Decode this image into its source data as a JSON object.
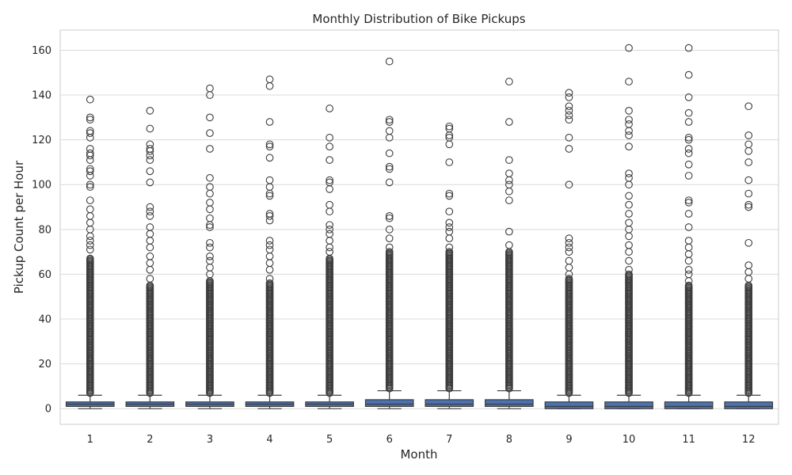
{
  "chart_data": {
    "type": "box",
    "title": "Monthly Distribution of Bike Pickups",
    "xlabel": "Month",
    "ylabel": "Pickup Count per Hour",
    "categories": [
      "1",
      "2",
      "3",
      "4",
      "5",
      "6",
      "7",
      "8",
      "9",
      "10",
      "11",
      "12"
    ],
    "ylim": [
      -7,
      169
    ],
    "yticks": [
      0,
      20,
      40,
      60,
      80,
      100,
      120,
      140,
      160
    ],
    "grid": true,
    "box_color": "#4c72b0",
    "series": [
      {
        "month": "1",
        "q1": 1,
        "median": 2,
        "q3": 3,
        "whisker_low": 0,
        "whisker_high": 6,
        "dense_outliers_to": 67,
        "outliers": [
          71,
          73,
          75,
          77,
          80,
          83,
          86,
          89,
          93,
          99,
          100,
          104,
          106,
          107,
          111,
          113,
          114,
          116,
          121,
          123,
          124,
          129,
          130,
          138
        ]
      },
      {
        "month": "2",
        "q1": 1,
        "median": 2,
        "q3": 3,
        "whisker_low": 0,
        "whisker_high": 6,
        "dense_outliers_to": 55,
        "outliers": [
          58,
          62,
          65,
          68,
          72,
          75,
          78,
          81,
          86,
          88,
          90,
          101,
          106,
          111,
          113,
          115,
          116,
          118,
          125,
          133
        ]
      },
      {
        "month": "3",
        "q1": 1,
        "median": 2,
        "q3": 3,
        "whisker_low": 0,
        "whisker_high": 6,
        "dense_outliers_to": 57,
        "outliers": [
          60,
          63,
          66,
          68,
          72,
          74,
          81,
          82,
          85,
          89,
          92,
          96,
          99,
          103,
          116,
          123,
          130,
          140,
          143
        ]
      },
      {
        "month": "4",
        "q1": 1,
        "median": 2,
        "q3": 3,
        "whisker_low": 0,
        "whisker_high": 6,
        "dense_outliers_to": 56,
        "outliers": [
          58,
          62,
          65,
          68,
          71,
          73,
          75,
          84,
          86,
          87,
          95,
          96,
          99,
          102,
          112,
          117,
          118,
          128,
          144,
          147
        ]
      },
      {
        "month": "5",
        "q1": 1,
        "median": 2,
        "q3": 3,
        "whisker_low": 0,
        "whisker_high": 6,
        "dense_outliers_to": 67,
        "outliers": [
          70,
          72,
          75,
          78,
          80,
          82,
          88,
          91,
          98,
          101,
          102,
          111,
          117,
          121,
          134
        ]
      },
      {
        "month": "6",
        "q1": 1,
        "median": 2,
        "q3": 4,
        "whisker_low": 0,
        "whisker_high": 8,
        "dense_outliers_to": 70,
        "outliers": [
          72,
          76,
          80,
          85,
          86,
          101,
          107,
          108,
          114,
          121,
          124,
          128,
          129,
          155
        ]
      },
      {
        "month": "7",
        "q1": 1,
        "median": 2,
        "q3": 4,
        "whisker_low": 0,
        "whisker_high": 8,
        "dense_outliers_to": 70,
        "outliers": [
          72,
          76,
          79,
          81,
          83,
          88,
          95,
          96,
          110,
          118,
          121,
          122,
          125,
          126
        ]
      },
      {
        "month": "8",
        "q1": 1,
        "median": 2,
        "q3": 4,
        "whisker_low": 0,
        "whisker_high": 8,
        "dense_outliers_to": 70,
        "outliers": [
          73,
          79,
          93,
          97,
          100,
          102,
          105,
          111,
          128,
          146
        ]
      },
      {
        "month": "9",
        "q1": 0,
        "median": 1,
        "q3": 3,
        "whisker_low": 0,
        "whisker_high": 6,
        "dense_outliers_to": 58,
        "outliers": [
          60,
          63,
          66,
          70,
          72,
          74,
          76,
          100,
          116,
          121,
          129,
          131,
          133,
          135,
          139,
          141
        ]
      },
      {
        "month": "10",
        "q1": 0,
        "median": 1,
        "q3": 3,
        "whisker_low": 0,
        "whisker_high": 6,
        "dense_outliers_to": 60,
        "outliers": [
          62,
          66,
          70,
          73,
          77,
          80,
          83,
          87,
          91,
          95,
          100,
          103,
          105,
          117,
          122,
          124,
          127,
          129,
          133,
          146,
          161
        ]
      },
      {
        "month": "11",
        "q1": 0,
        "median": 1,
        "q3": 3,
        "whisker_low": 0,
        "whisker_high": 6,
        "dense_outliers_to": 55,
        "outliers": [
          57,
          60,
          62,
          66,
          69,
          72,
          75,
          81,
          87,
          92,
          93,
          104,
          109,
          114,
          116,
          120,
          121,
          128,
          132,
          139,
          149,
          161
        ]
      },
      {
        "month": "12",
        "q1": 0,
        "median": 1,
        "q3": 3,
        "whisker_low": 0,
        "whisker_high": 6,
        "dense_outliers_to": 55,
        "outliers": [
          58,
          61,
          64,
          74,
          90,
          91,
          96,
          102,
          110,
          115,
          118,
          122,
          135
        ]
      }
    ]
  }
}
